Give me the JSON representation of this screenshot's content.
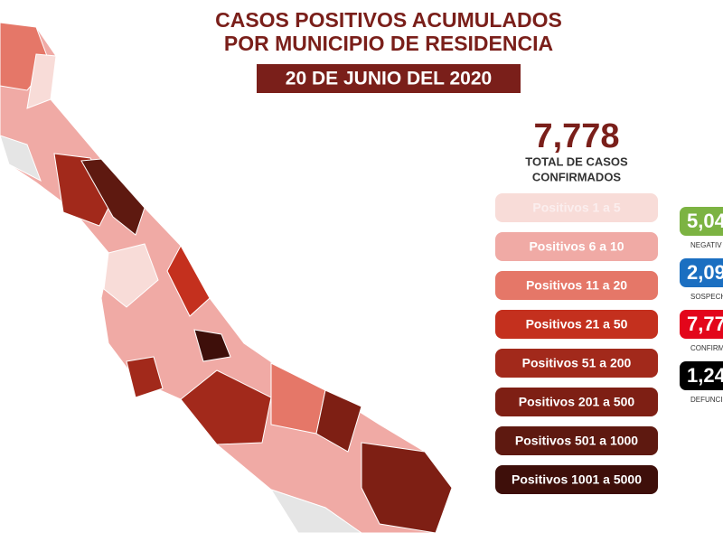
{
  "header": {
    "title_lines": [
      "CASOS POSITIVOS ACUMULADOS",
      "POR MUNICIPIO DE RESIDENCIA"
    ],
    "date": "20 DE JUNIO DEL 2020"
  },
  "summary": {
    "total": "7,778",
    "label_lines": [
      "TOTAL DE CASOS",
      "CONFIRMADOS"
    ]
  },
  "legend": [
    {
      "label": "Positivos 1 a 5",
      "color": "#f8dcd8"
    },
    {
      "label": "Positivos 6 a 10",
      "color": "#f0aaa5"
    },
    {
      "label": "Positivos 11 a 20",
      "color": "#e57768"
    },
    {
      "label": "Positivos 21 a 50",
      "color": "#c4301e"
    },
    {
      "label": "Positivos 51 a 200",
      "color": "#a2291b"
    },
    {
      "label": "Positivos 201 a 500",
      "color": "#7e1f14"
    },
    {
      "label": "Positivos 501 a 1000",
      "color": "#5e1910"
    },
    {
      "label": "Positivos 1001 a 5000",
      "color": "#3e0f0a"
    }
  ],
  "stats": [
    {
      "value": "5,04",
      "label": "NEGATIV",
      "color": "#7cb342"
    },
    {
      "value": "2,09",
      "label": "SOSPECH",
      "color": "#1b6fc1"
    },
    {
      "value": "7,77",
      "label": "CONFIRM",
      "color": "#e3061b"
    },
    {
      "value": "1,24",
      "label": "DEFUNCI",
      "color": "#000000"
    }
  ]
}
